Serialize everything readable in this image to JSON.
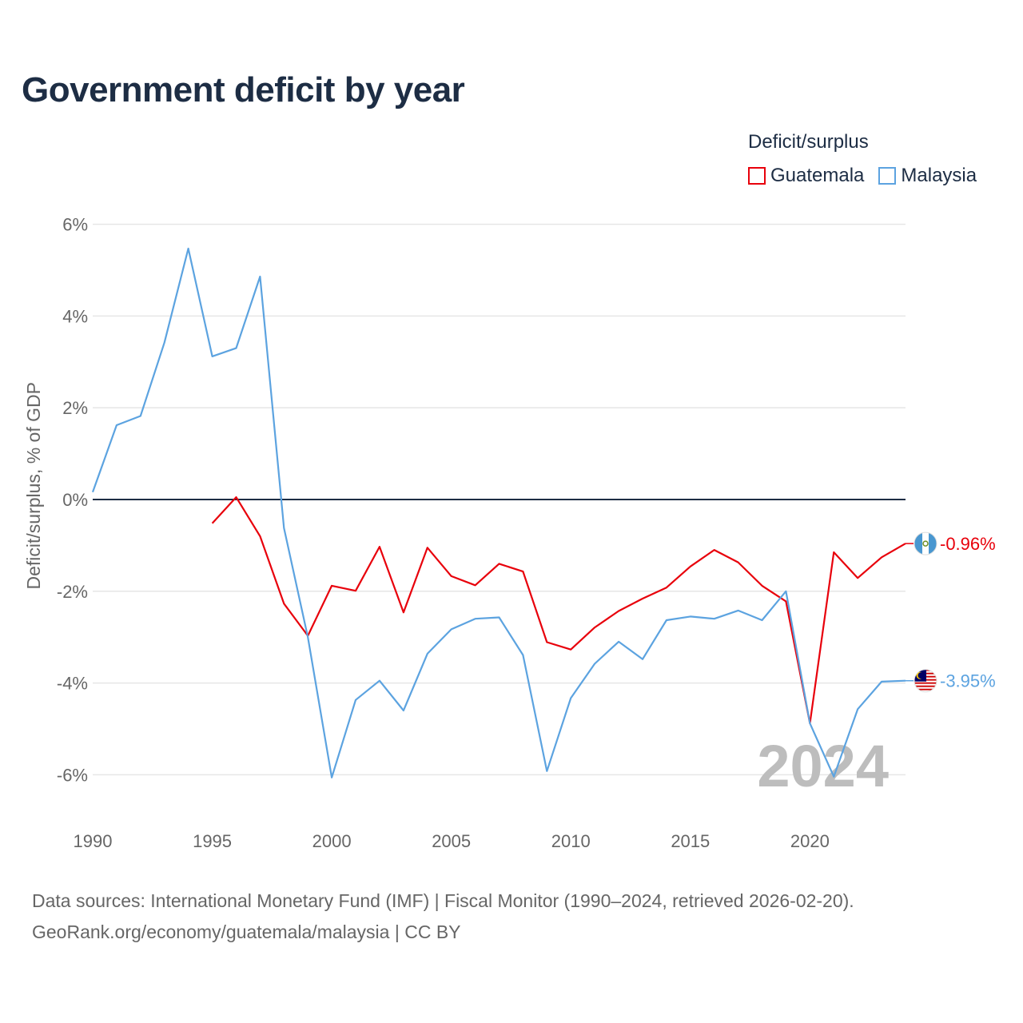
{
  "title": "Government deficit by year",
  "legend": {
    "title": "Deficit/surplus",
    "items": [
      {
        "label": "Guatemala",
        "color": "#e8000b"
      },
      {
        "label": "Malaysia",
        "color": "#5ca3e0"
      }
    ]
  },
  "chart_data": {
    "type": "line",
    "title": "Government deficit by year",
    "xlabel": "",
    "ylabel": "Deficit/surplus, % of GDP",
    "xlim": [
      1990,
      2024
    ],
    "ylim": [
      -7,
      6.5
    ],
    "y_ticks": [
      6,
      4,
      2,
      0,
      -2,
      -4,
      -6
    ],
    "y_tick_labels": [
      "6%",
      "4%",
      "2%",
      "0%",
      "-2%",
      "-4%",
      "-6%"
    ],
    "x_ticks": [
      1990,
      1995,
      2000,
      2005,
      2010,
      2015,
      2020
    ],
    "x_tick_labels": [
      "1990",
      "1995",
      "2000",
      "2005",
      "2010",
      "2015",
      "2020"
    ],
    "year_watermark": "2024",
    "grid": true,
    "series": [
      {
        "name": "Guatemala",
        "color": "#e8000b",
        "end_label": "-0.96%",
        "flag": "guatemala-flag-icon",
        "x": [
          1995,
          1996,
          1997,
          1998,
          1999,
          2000,
          2001,
          2002,
          2003,
          2004,
          2005,
          2006,
          2007,
          2008,
          2009,
          2010,
          2011,
          2012,
          2013,
          2014,
          2015,
          2016,
          2017,
          2018,
          2019,
          2020,
          2021,
          2022,
          2023,
          2024
        ],
        "values": [
          -0.52,
          0.05,
          -0.8,
          -2.27,
          -2.97,
          -1.88,
          -1.99,
          -1.03,
          -2.46,
          -1.05,
          -1.67,
          -1.87,
          -1.4,
          -1.57,
          -3.11,
          -3.27,
          -2.79,
          -2.43,
          -2.16,
          -1.92,
          -1.46,
          -1.1,
          -1.37,
          -1.88,
          -2.22,
          -4.88,
          -1.15,
          -1.71,
          -1.26,
          -0.96
        ]
      },
      {
        "name": "Malaysia",
        "color": "#5ca3e0",
        "end_label": "-3.95%",
        "flag": "malaysia-flag-icon",
        "x": [
          1990,
          1991,
          1992,
          1993,
          1994,
          1995,
          1996,
          1997,
          1998,
          1999,
          2000,
          2001,
          2002,
          2003,
          2004,
          2005,
          2006,
          2007,
          2008,
          2009,
          2010,
          2011,
          2012,
          2013,
          2014,
          2015,
          2016,
          2017,
          2018,
          2019,
          2020,
          2021,
          2022,
          2023,
          2024
        ],
        "values": [
          0.16,
          1.62,
          1.82,
          3.42,
          5.47,
          3.12,
          3.3,
          4.86,
          -0.62,
          -3.0,
          -6.06,
          -4.37,
          -3.95,
          -4.6,
          -3.36,
          -2.83,
          -2.6,
          -2.57,
          -3.39,
          -5.92,
          -4.33,
          -3.58,
          -3.1,
          -3.48,
          -2.63,
          -2.55,
          -2.6,
          -2.42,
          -2.63,
          -2.0,
          -4.88,
          -6.04,
          -4.57,
          -3.97,
          -3.95
        ]
      }
    ]
  },
  "sources": {
    "line1": "Data sources: International Monetary Fund (IMF) | Fiscal Monitor (1990–2024, retrieved 2026-02-20).",
    "line2": "GeoRank.org/economy/guatemala/malaysia | CC BY"
  }
}
